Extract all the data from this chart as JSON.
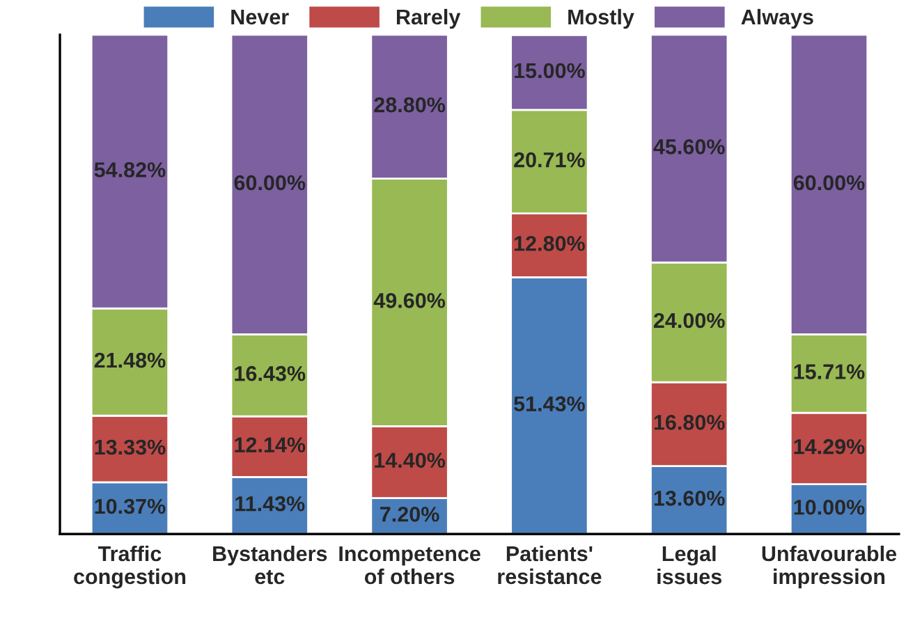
{
  "chart_data": {
    "type": "bar",
    "stacked": true,
    "categories": [
      "Traffic\ncongestion",
      "Bystanders\netc",
      "Incompetence\nof others",
      "Patients'\nresistance",
      "Legal\nissues",
      "Unfavourable\nimpression"
    ],
    "series": [
      {
        "name": "Never",
        "color": "#4a7ebb",
        "values": [
          10.37,
          11.43,
          7.2,
          51.43,
          13.6,
          10.0
        ],
        "value_labels": [
          "10.37%",
          "11.43%",
          "7.20%",
          "51.43%",
          "13.60%",
          "10.00%"
        ]
      },
      {
        "name": "Rarely",
        "color": "#be4b48",
        "values": [
          13.33,
          12.14,
          14.4,
          12.8,
          16.8,
          14.29
        ],
        "value_labels": [
          "13.33%",
          "12.14%",
          "14.40%",
          "12.80%",
          "16.80%",
          "14.29%"
        ]
      },
      {
        "name": "Mostly",
        "color": "#98b954",
        "values": [
          21.48,
          16.43,
          49.6,
          20.71,
          24.0,
          15.71
        ],
        "value_labels": [
          "21.48%",
          "16.43%",
          "49.60%",
          "20.71%",
          "24.00%",
          "15.71%"
        ]
      },
      {
        "name": "Always",
        "color": "#7d60a0",
        "values": [
          54.82,
          60.0,
          28.8,
          15.0,
          45.6,
          60.0
        ],
        "value_labels": [
          "54.82%",
          "60.00%",
          "28.80%",
          "15.00%",
          "45.60%",
          "60.00%"
        ]
      }
    ],
    "ylim": [
      0,
      100
    ],
    "tick_labels": "x",
    "legend": "top",
    "grid": false
  }
}
